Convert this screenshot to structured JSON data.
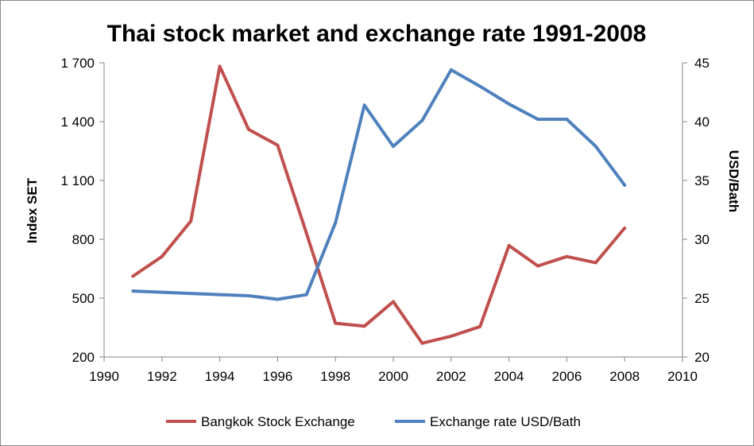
{
  "chart_data": {
    "type": "line",
    "title": "Thai stock market and exchange rate 1991-2008",
    "xlabel": "",
    "ylabel": "Index SET",
    "y2label": "USD/Bath",
    "xlim": [
      1990,
      2010
    ],
    "ylim": [
      200,
      1700
    ],
    "y2lim": [
      20,
      45
    ],
    "x_ticks": [
      "1990",
      "1992",
      "1994",
      "1996",
      "1998",
      "2000",
      "2002",
      "2004",
      "2006",
      "2008",
      "2010"
    ],
    "y_ticks": [
      "200",
      "500",
      "800",
      "1 100",
      "1 400",
      "1 700"
    ],
    "y2_ticks": [
      "20",
      "25",
      "30",
      "35",
      "40",
      "45"
    ],
    "grid": false,
    "legend_position": "bottom",
    "x": [
      1991,
      1992,
      1993,
      1994,
      1995,
      1996,
      1997,
      1998,
      1999,
      2000,
      2001,
      2002,
      2003,
      2004,
      2005,
      2006,
      2007,
      2008
    ],
    "series": [
      {
        "name": "Bangkok Stock Exchange",
        "axis": "left",
        "color": "#c0504d",
        "values": [
          612,
          712,
          893,
          1682,
          1360,
          1280,
          830,
          372,
          357,
          482,
          270,
          306,
          355,
          768,
          664,
          712,
          681,
          857
        ]
      },
      {
        "name": "Exchange rate USD/Bath",
        "axis": "right",
        "color": "#4f81bd",
        "values": [
          25.6,
          25.5,
          25.4,
          25.3,
          25.2,
          24.9,
          25.3,
          31.4,
          41.4,
          37.9,
          40.1,
          44.4,
          43.0,
          41.5,
          40.2,
          40.2,
          37.9,
          34.6
        ]
      }
    ]
  }
}
